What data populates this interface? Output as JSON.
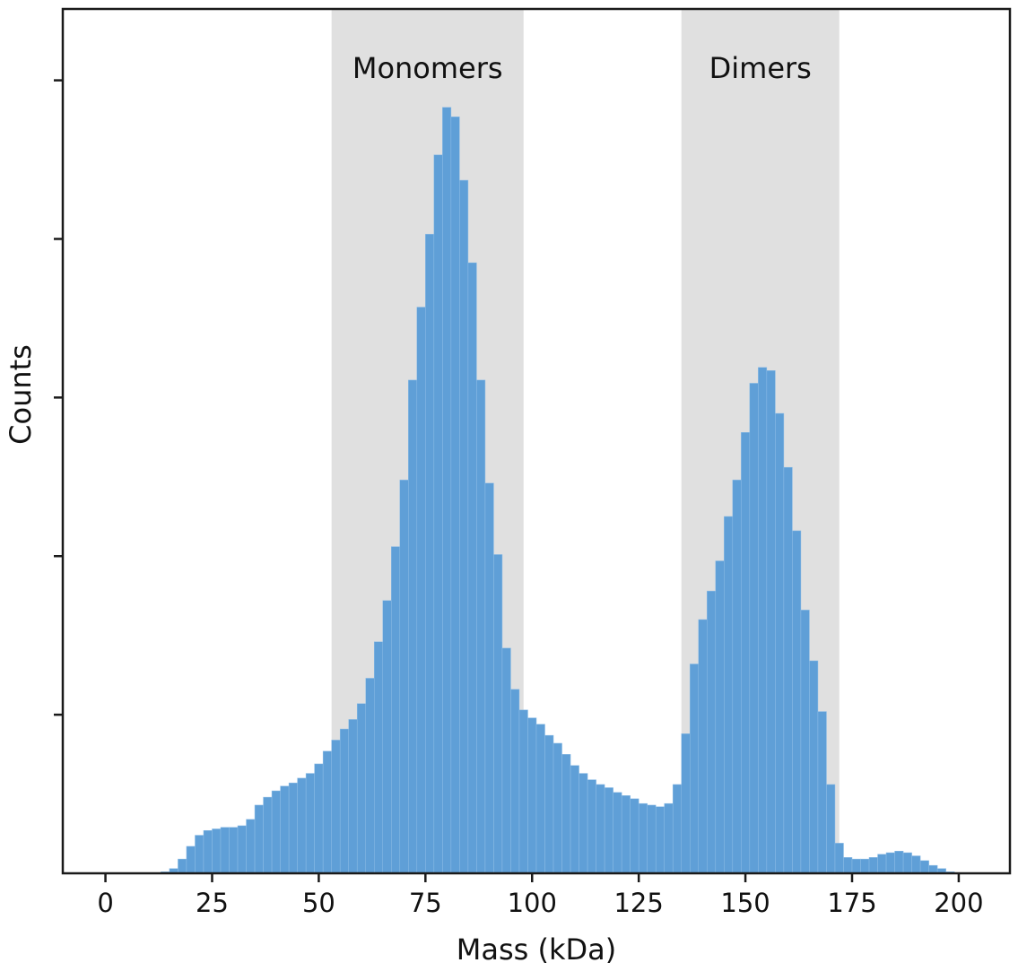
{
  "chart_data": {
    "type": "bar",
    "subtype": "histogram",
    "xlabel": "Mass (kDa)",
    "ylabel": "Counts",
    "xlim": [
      -10,
      212
    ],
    "ylim": [
      0,
      545
    ],
    "x_ticks": [
      0,
      25,
      50,
      75,
      100,
      125,
      150,
      175,
      200
    ],
    "y_ticks_labeled": false,
    "y_tick_values": [
      100,
      200,
      300,
      400,
      500
    ],
    "bin_start": 13,
    "bin_width": 2,
    "counts": [
      1,
      3,
      9,
      17,
      24,
      27,
      28,
      29,
      29,
      30,
      34,
      43,
      48,
      52,
      55,
      57,
      60,
      63,
      69,
      77,
      84,
      91,
      97,
      107,
      123,
      146,
      172,
      206,
      248,
      311,
      357,
      403,
      453,
      483,
      477,
      437,
      385,
      311,
      246,
      201,
      142,
      116,
      103,
      98,
      94,
      87,
      82,
      75,
      68,
      63,
      59,
      56,
      54,
      51,
      49,
      47,
      44,
      43,
      42,
      44,
      56,
      88,
      132,
      160,
      178,
      197,
      225,
      248,
      278,
      309,
      319,
      317,
      290,
      256,
      216,
      166,
      134,
      102,
      56,
      19,
      10,
      9,
      9,
      10,
      12,
      13,
      14,
      13,
      11,
      8,
      5,
      3,
      1
    ],
    "bar_color": "#5f9fd7",
    "regions": [
      {
        "label": "Monomers",
        "x_start": 53,
        "x_end": 98
      },
      {
        "label": "Dimers",
        "x_start": 135,
        "x_end": 172
      }
    ],
    "region_color": "#e0e0e0",
    "legend": "none",
    "grid": false
  }
}
